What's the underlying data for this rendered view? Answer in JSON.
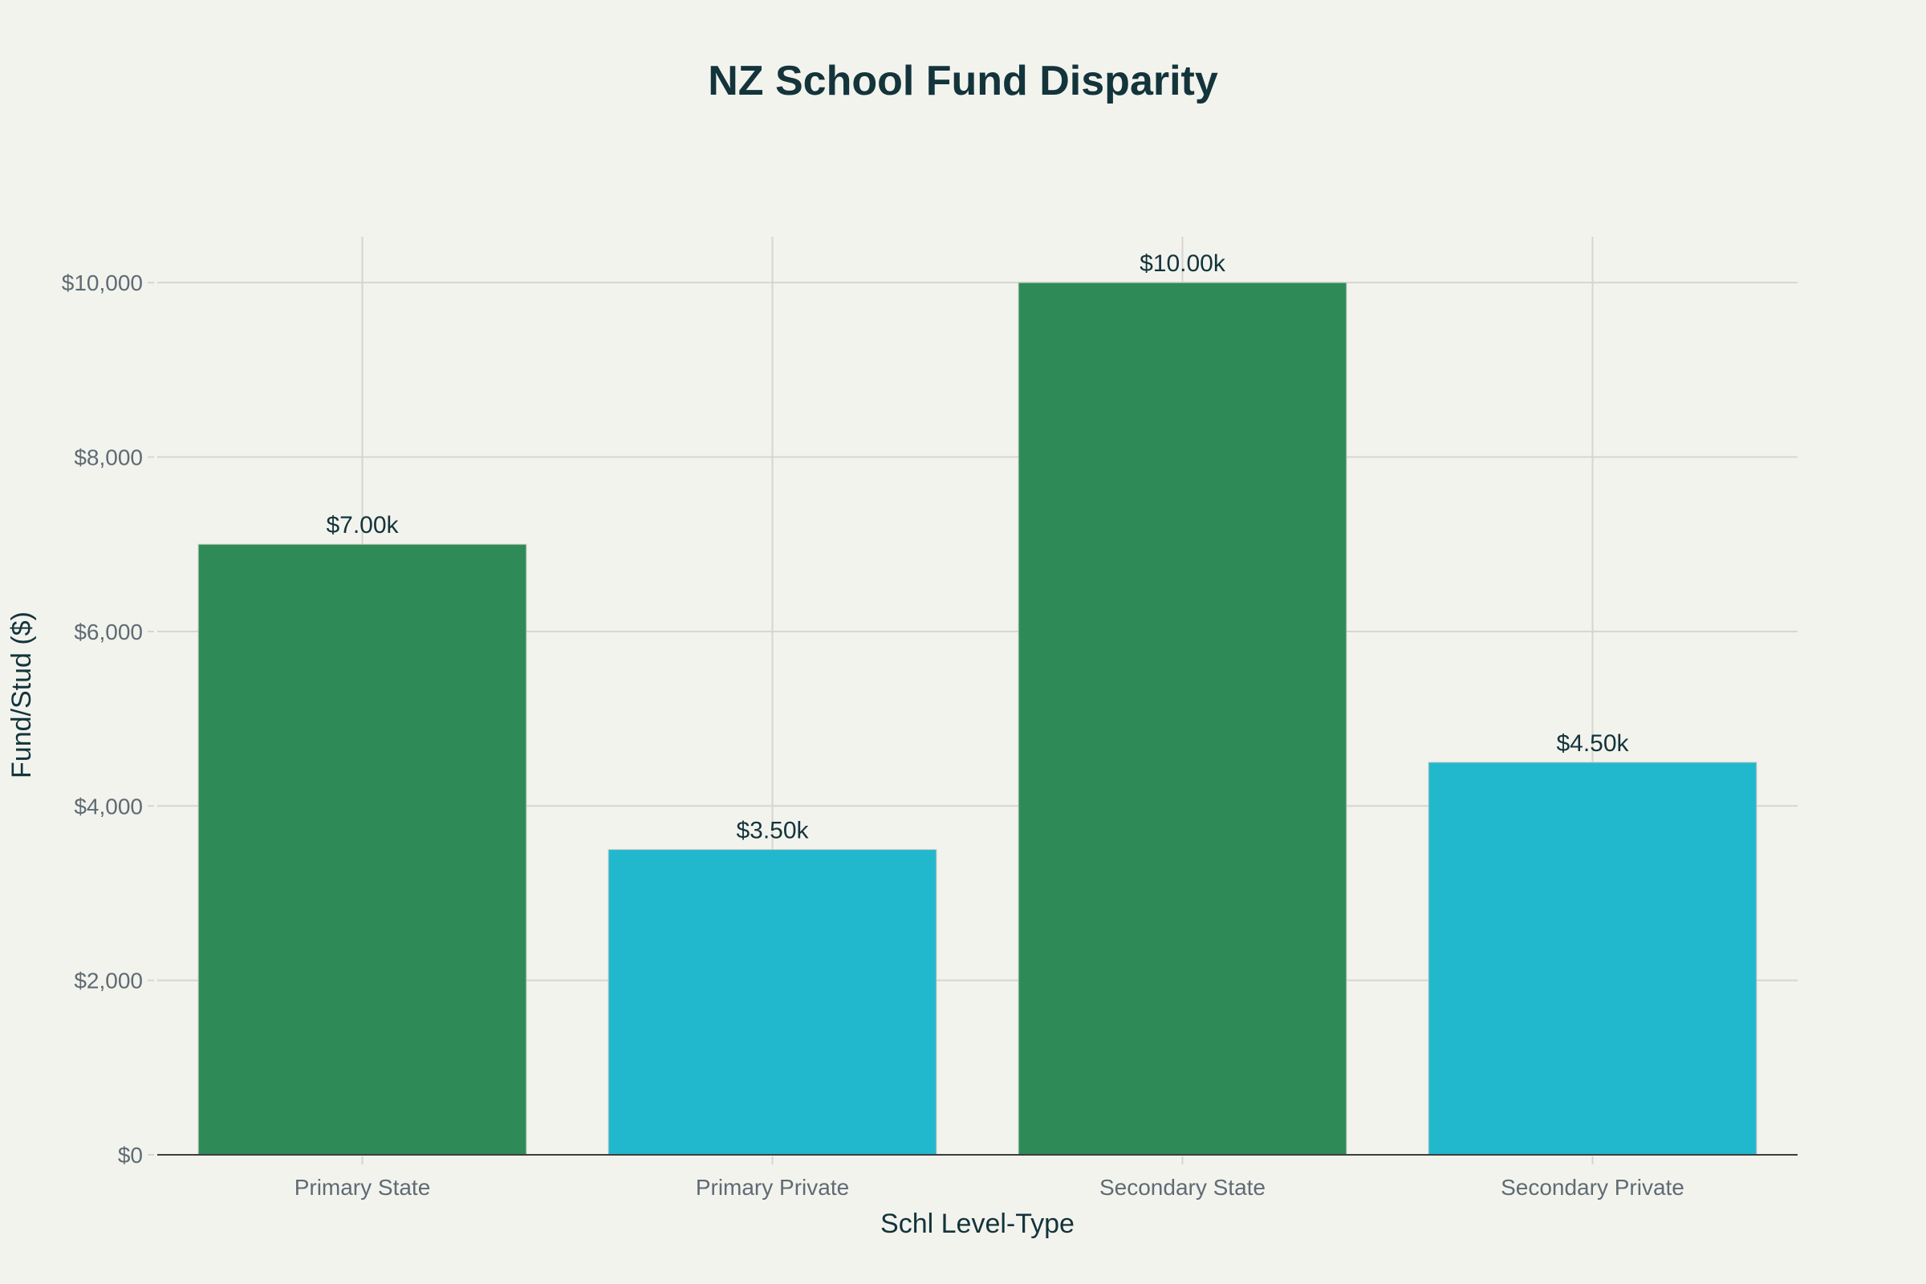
{
  "chart_data": {
    "type": "bar",
    "title": "NZ School Fund Disparity",
    "xlabel": "Schl Level-Type",
    "ylabel": "Fund/Stud ($)",
    "categories": [
      "Primary State",
      "Primary Private",
      "Secondary State",
      "Secondary Private"
    ],
    "values": [
      7000,
      3500,
      10000,
      4500
    ],
    "data_labels": [
      "$7.00k",
      "$3.50k",
      "$10.00k",
      "$4.50k"
    ],
    "colors": [
      "#2e8b57",
      "#21b8cd",
      "#2e8b57",
      "#21b8cd"
    ],
    "ylim": [
      0,
      10526
    ],
    "yticks": [
      0,
      2000,
      4000,
      6000,
      8000,
      10000
    ],
    "ytick_labels": [
      "$0",
      "$2,000",
      "$4,000",
      "$6,000",
      "$8,000",
      "$10,000"
    ],
    "grid": true,
    "legend": "none"
  }
}
